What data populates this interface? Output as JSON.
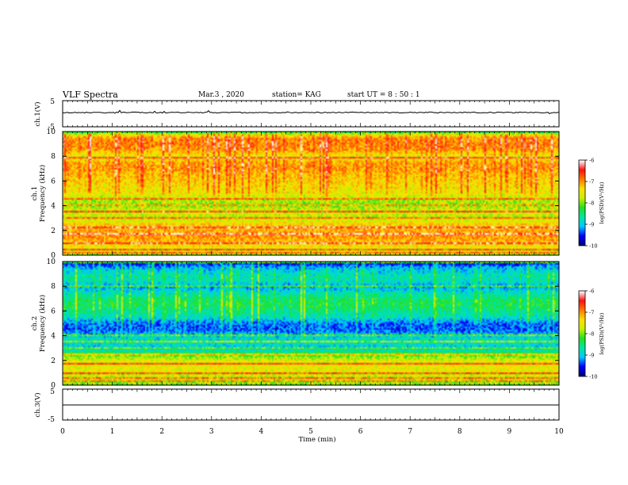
{
  "header": {
    "title": "VLF Spectra",
    "date": "Mar.3  , 2020",
    "station": "station= KAG",
    "start": "start  UT =   8 : 50 : 1"
  },
  "panels": {
    "ch1_wave": {
      "ylabel": "ch.1(V)",
      "ticks": [
        "5",
        "-5"
      ]
    },
    "ch1_spec": {
      "ylabel_top": "ch.1",
      "ylabel": "Frequency (kHz)",
      "cbar_label": "log(PSD)(V²/Hz)"
    },
    "ch2_spec": {
      "ylabel_top": "ch.2",
      "ylabel": "Frequency (kHz)",
      "cbar_label": "log(PSD)(V²/Hz)"
    },
    "ch3_wave": {
      "ylabel": "ch.3(V)",
      "ticks": [
        "5",
        "-5"
      ]
    }
  },
  "colorbar_ticks": [
    "-6",
    "-7",
    "-8",
    "-9",
    "-10"
  ],
  "freq_ticks": [
    "0",
    "2",
    "4",
    "6",
    "8",
    "10"
  ],
  "colors": {
    "scale": [
      "#00007a",
      "#0000ff",
      "#00c8ff",
      "#00e8a0",
      "#22e022",
      "#c8f000",
      "#ffe000",
      "#ff7a00",
      "#ff1010",
      "#ffffff"
    ]
  },
  "chart_data": [
    {
      "type": "line",
      "panel": "ch.1 waveform",
      "ylabel": "ch.1(V)",
      "ylim": [
        -5,
        5
      ],
      "x": [
        0,
        10
      ],
      "y": [
        0,
        0
      ]
    },
    {
      "type": "heatmap",
      "panel": "ch.1 spectrogram",
      "ylabel": "Frequency (kHz)",
      "ylim": [
        0,
        10
      ],
      "xlim": [
        0,
        10
      ],
      "zlim": [
        -10,
        -6
      ],
      "colorbar_label": "log(PSD)(V²/Hz)",
      "freq_profile_khz": [
        0,
        0.5,
        1,
        1.5,
        2,
        2.5,
        3,
        3.5,
        4,
        4.5,
        5,
        5.5,
        6,
        6.5,
        7,
        7.5,
        8,
        8.5,
        9,
        9.5,
        10
      ],
      "psd_profile": [
        -7.8,
        -7.6,
        -7.2,
        -7.0,
        -7.1,
        -7.3,
        -7.8,
        -7.6,
        -8.0,
        -7.8,
        -7.5,
        -7.4,
        -7.3,
        -7.2,
        -7.0,
        -7.1,
        -7.6,
        -7.0,
        -6.9,
        -7.0,
        -8.2
      ],
      "lines_khz": [
        0.2,
        0.5,
        1.0,
        1.7,
        2.3,
        3.0,
        3.5,
        4.0,
        4.6,
        7.9
      ]
    },
    {
      "type": "heatmap",
      "panel": "ch.2 spectrogram",
      "ylabel": "Frequency (kHz)",
      "ylim": [
        0,
        10
      ],
      "xlim": [
        0,
        10
      ],
      "zlim": [
        -10,
        -6
      ],
      "colorbar_label": "log(PSD)(V²/Hz)",
      "freq_profile_khz": [
        0,
        0.5,
        1,
        1.5,
        2,
        2.5,
        3,
        3.5,
        4,
        4.5,
        5,
        5.5,
        6,
        6.5,
        7,
        7.5,
        8,
        8.5,
        9,
        9.5,
        10
      ],
      "psd_profile": [
        -8.0,
        -7.8,
        -7.6,
        -7.5,
        -7.6,
        -8.2,
        -9.0,
        -8.8,
        -9.0,
        -9.4,
        -9.3,
        -8.8,
        -8.6,
        -8.4,
        -8.5,
        -8.8,
        -9.2,
        -8.7,
        -8.8,
        -9.1,
        -9.8
      ],
      "lines_khz": [
        0.3,
        0.6,
        1.0,
        1.7,
        2.5,
        3.0,
        3.5,
        4.0,
        8.0
      ]
    },
    {
      "type": "line",
      "panel": "ch.3 waveform",
      "ylabel": "ch.3(V)",
      "ylim": [
        -5,
        5
      ],
      "x": [
        0,
        10
      ],
      "y": [
        0,
        0
      ]
    }
  ],
  "xaxis": {
    "label": "Time  (min)",
    "ticks": [
      "0",
      "1",
      "2",
      "3",
      "4",
      "5",
      "6",
      "7",
      "8",
      "9",
      "10"
    ]
  }
}
